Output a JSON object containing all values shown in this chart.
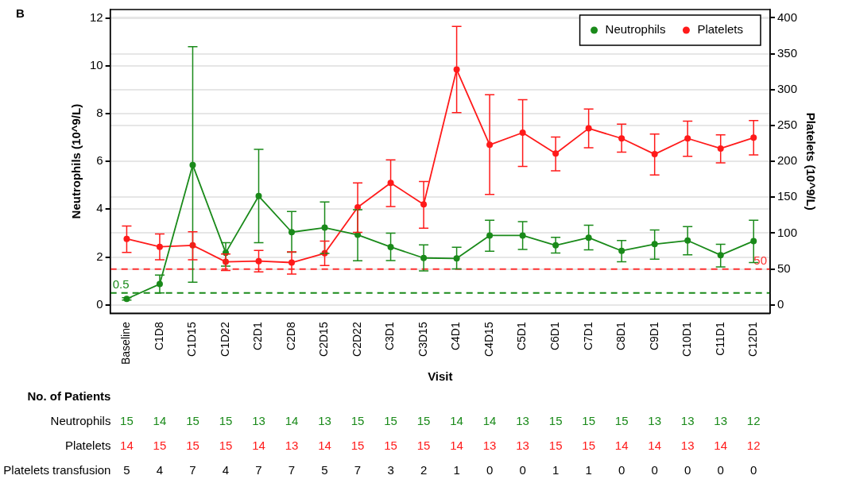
{
  "chart_data": {
    "type": "line",
    "title": "B",
    "xlabel": "Visit",
    "ylabel": "Neutrophils (10^9/L)",
    "y2label": "Platelets (10^9/L)",
    "categories": [
      "Baseline",
      "C1D8",
      "C1D15",
      "C1D22",
      "C2D1",
      "C2D8",
      "C2D15",
      "C2D22",
      "C3D1",
      "C3D15",
      "C4D1",
      "C4D15",
      "C5D1",
      "C6D1",
      "C7D1",
      "C8D1",
      "C9D1",
      "C10D1",
      "C11D1",
      "C12D1"
    ],
    "series": [
      {
        "name": "Neutrophils",
        "color": "#1a8a1a",
        "values": [
          0.25,
          0.87,
          5.85,
          2.18,
          4.55,
          3.04,
          3.23,
          2.93,
          2.42,
          1.96,
          1.94,
          2.9,
          2.9,
          2.49,
          2.81,
          2.26,
          2.54,
          2.69,
          2.08,
          2.67
        ],
        "errors": [
          [
            0.2,
            0.3
          ],
          [
            0.5,
            1.25
          ],
          [
            0.95,
            10.8
          ],
          [
            1.62,
            2.6
          ],
          [
            2.6,
            6.5
          ],
          [
            2.2,
            3.9
          ],
          [
            2.15,
            4.3
          ],
          [
            1.84,
            3.98
          ],
          [
            1.85,
            3.0
          ],
          [
            1.42,
            2.51
          ],
          [
            1.5,
            2.41
          ],
          [
            2.24,
            3.54
          ],
          [
            2.32,
            3.48
          ],
          [
            2.17,
            2.82
          ],
          [
            2.3,
            3.33
          ],
          [
            1.8,
            2.69
          ],
          [
            1.91,
            3.13
          ],
          [
            2.09,
            3.27
          ],
          [
            1.59,
            2.53
          ],
          [
            1.77,
            3.54
          ]
        ]
      },
      {
        "name": "Platelets",
        "color": "#ff1a1a",
        "axis": "y2",
        "values": [
          92,
          81,
          83,
          60,
          61,
          59,
          72,
          136,
          170,
          140,
          328,
          223,
          240,
          211,
          246,
          232,
          210,
          232,
          218,
          233
        ],
        "errors": [
          [
            73,
            110
          ],
          [
            63,
            99
          ],
          [
            63,
            102
          ],
          [
            48,
            71
          ],
          [
            46,
            76
          ],
          [
            43,
            74
          ],
          [
            55,
            89
          ],
          [
            101,
            170
          ],
          [
            137,
            202
          ],
          [
            107,
            172
          ],
          [
            268,
            388
          ],
          [
            154,
            293
          ],
          [
            193,
            286
          ],
          [
            187,
            234
          ],
          [
            219,
            273
          ],
          [
            213,
            252
          ],
          [
            181,
            238
          ],
          [
            207,
            256
          ],
          [
            198,
            237
          ],
          [
            209,
            257
          ]
        ]
      }
    ],
    "ylim": [
      -0.35,
      12.35
    ],
    "yticks": [
      0,
      2,
      4,
      6,
      8,
      10,
      12
    ],
    "y2lim": [
      -11.6,
      411.6
    ],
    "y2ticks": [
      0,
      50,
      100,
      150,
      200,
      250,
      300,
      350,
      400
    ],
    "ref_lines": [
      {
        "axis": "y",
        "value": 0.5,
        "label": "0.5",
        "color": "#1a8a1a",
        "line_style": "dashed"
      },
      {
        "axis": "y2",
        "value": 50,
        "label": "50",
        "color": "#ff3333",
        "line_style": "dashed"
      }
    ],
    "grid": "y",
    "legend": "top right",
    "marker": "circle",
    "line_style": "solid",
    "annotations": [
      "No. of Patients",
      "Neutrophils",
      "15",
      "14",
      "15",
      "15",
      "13",
      "14",
      "13",
      "15",
      "15",
      "15",
      "14",
      "14",
      "13",
      "15",
      "15",
      "15",
      "13",
      "13",
      "13",
      "12",
      "Platelets",
      "14",
      "15",
      "15",
      "15",
      "14",
      "13",
      "14",
      "15",
      "15",
      "15",
      "14",
      "13",
      "13",
      "15",
      "15",
      "14",
      "14",
      "13",
      "14",
      "12",
      "Platelets transfusion",
      "5",
      "4",
      "7",
      "4",
      "7",
      "7",
      "5",
      "7",
      "3",
      "2",
      "1",
      "0",
      "0",
      "1",
      "1",
      "0",
      "0",
      "0",
      "0",
      "0"
    ]
  }
}
